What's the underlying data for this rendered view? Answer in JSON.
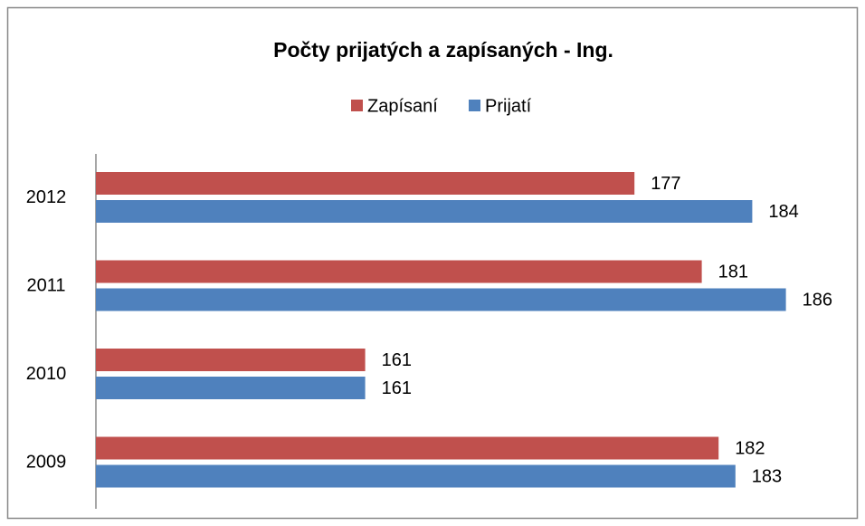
{
  "chart_data": {
    "type": "hbar",
    "title": "Počty prijatých a zapísaných - Ing.",
    "categories": [
      "2009",
      "2010",
      "2011",
      "2012"
    ],
    "series": [
      {
        "name": "Zapísaní",
        "color": "#c0504d",
        "values": [
          182,
          161,
          181,
          177
        ]
      },
      {
        "name": "Prijatí",
        "color": "#4f81bd",
        "values": [
          183,
          161,
          186,
          184
        ]
      }
    ],
    "xlim": [
      145,
      190
    ],
    "legend": "top"
  }
}
